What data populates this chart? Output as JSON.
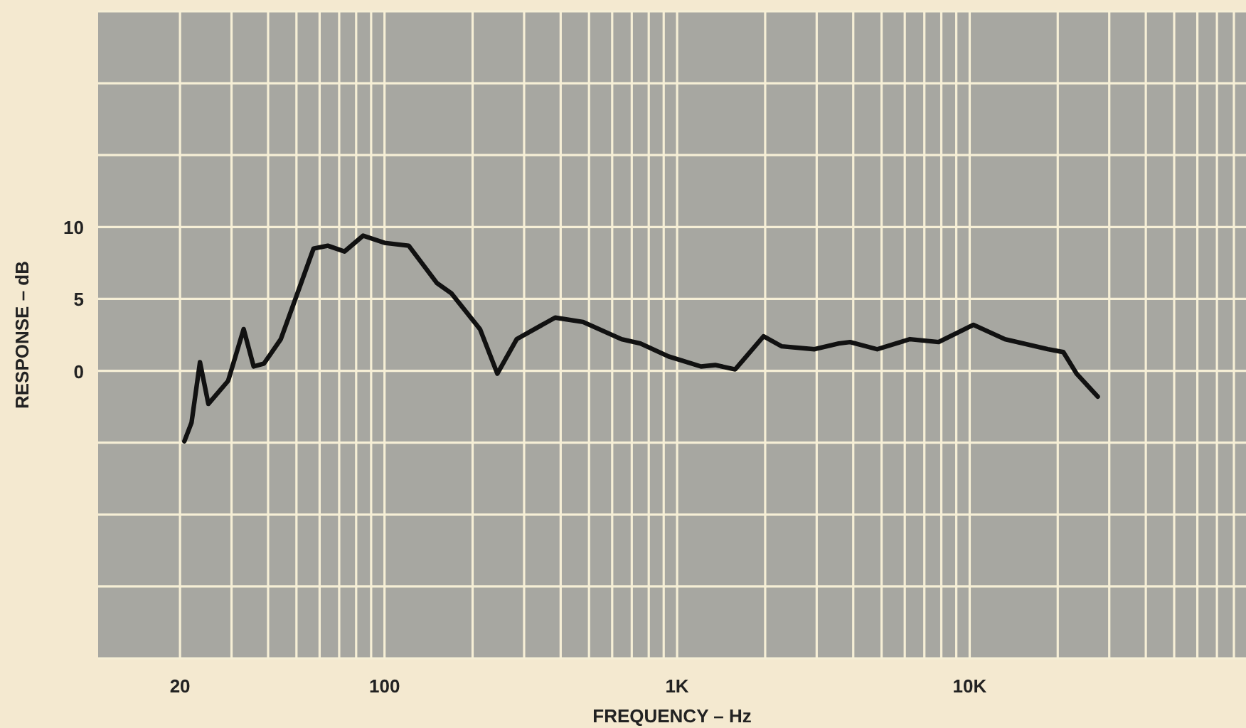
{
  "chart_data": {
    "type": "line",
    "xlabel": "FREQUENCY – Hz",
    "ylabel": "RESPONSE – dB",
    "log": "x",
    "grid": true,
    "marker": "none",
    "line_style": "solid",
    "xlim": [
      10.5,
      88000
    ],
    "ylim": [
      -20,
      25
    ],
    "xticks": [
      20,
      {
        "value": 30,
        "label": null
      },
      {
        "value": 40,
        "label": null
      },
      {
        "value": 50,
        "label": null
      },
      {
        "value": 60,
        "label": null
      },
      {
        "value": 70,
        "label": null
      },
      {
        "value": 80,
        "label": null
      },
      {
        "value": 90,
        "label": null
      },
      100,
      {
        "value": 200,
        "label": null
      },
      {
        "value": 300,
        "label": null
      },
      {
        "value": 400,
        "label": null
      },
      {
        "value": 500,
        "label": null
      },
      {
        "value": 600,
        "label": null
      },
      {
        "value": 700,
        "label": null
      },
      {
        "value": 800,
        "label": null
      },
      {
        "value": 900,
        "label": null
      },
      {
        "value": 1000,
        "label": "1K"
      },
      {
        "value": 2000,
        "label": null
      },
      {
        "value": 3000,
        "label": null
      },
      {
        "value": 4000,
        "label": null
      },
      {
        "value": 5000,
        "label": null
      },
      {
        "value": 6000,
        "label": null
      },
      {
        "value": 7000,
        "label": null
      },
      {
        "value": 8000,
        "label": null
      },
      {
        "value": 9000,
        "label": null
      },
      {
        "value": 10000,
        "label": "10K"
      },
      {
        "value": 20000,
        "label": null
      },
      {
        "value": 30000,
        "label": null
      },
      {
        "value": 40000,
        "label": null
      },
      {
        "value": 50000,
        "label": null
      },
      {
        "value": 60000,
        "label": null
      },
      {
        "value": 70000,
        "label": null
      },
      {
        "value": 80000,
        "label": null
      }
    ],
    "yticks": [
      {
        "value": -20,
        "label": null
      },
      {
        "value": -15,
        "label": null
      },
      {
        "value": -10,
        "label": null
      },
      {
        "value": -5,
        "label": null
      },
      0,
      5,
      10,
      {
        "value": 15,
        "label": null
      },
      {
        "value": 20,
        "label": null
      },
      {
        "value": 25,
        "label": null
      }
    ],
    "series": [
      {
        "color": "#111111",
        "x": [
          20.7,
          21.9,
          23.4,
          25,
          29.2,
          33,
          35.7,
          38.7,
          44.2,
          49.4,
          57.2,
          64,
          73,
          84.5,
          100,
          121,
          151,
          169,
          212,
          243,
          283,
          383,
          477,
          646,
          749,
          935,
          1207,
          1350,
          1580,
          1975,
          2280,
          2950,
          3570,
          3900,
          4830,
          6250,
          7830,
          10300,
          13200,
          18500,
          20900,
          23200,
          27400
        ],
        "values": [
          -4.9,
          -3.6,
          0.6,
          -2.3,
          -0.7,
          2.9,
          0.3,
          0.5,
          2.2,
          4.9,
          8.5,
          8.7,
          8.3,
          9.4,
          8.9,
          8.7,
          6.1,
          5.4,
          2.9,
          -0.2,
          2.2,
          3.7,
          3.4,
          2.2,
          1.9,
          1.0,
          0.3,
          0.4,
          0.1,
          2.4,
          1.7,
          1.5,
          1.9,
          2.0,
          1.5,
          2.2,
          2.0,
          3.2,
          2.2,
          1.5,
          1.3,
          -0.2,
          -1.8
        ]
      }
    ]
  }
}
